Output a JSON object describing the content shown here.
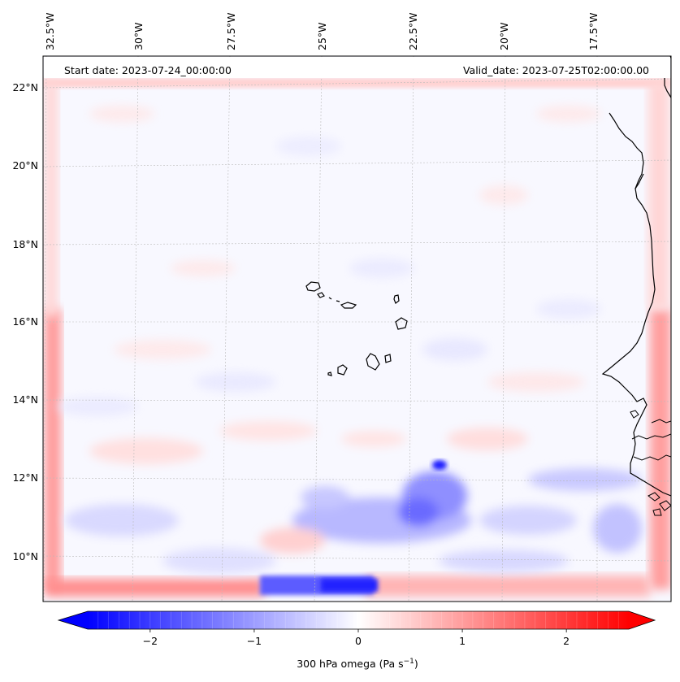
{
  "header": {
    "start_date": "Start date: 2023-07-24_00:00:00",
    "valid_date": "Valid_date: 2023-07-25T02:00:00.00"
  },
  "axes": {
    "lon_labels": [
      "32.5°W",
      "30°W",
      "27.5°W",
      "25°W",
      "22.5°W",
      "20°W",
      "17.5°W"
    ],
    "lat_labels": [
      "22°N",
      "20°N",
      "18°N",
      "16°N",
      "14°N",
      "12°N",
      "10°N"
    ]
  },
  "colorbar": {
    "label": "300 hPa omega (Pa s",
    "label_sup": "−1",
    "label_end": ")",
    "ticks": [
      "−2",
      "−1",
      "0",
      "1",
      "2"
    ],
    "tick_values": [
      -2,
      -1,
      0,
      1,
      2
    ],
    "range": [
      -2.6,
      2.6
    ],
    "colors": {
      "negative": "#0000ff",
      "zero": "#ffffff",
      "positive": "#ff0000"
    }
  },
  "colors": {
    "coastline": "#000000",
    "gridline": "#bbbbbb",
    "neutral_field": "#f8f8ff"
  }
}
